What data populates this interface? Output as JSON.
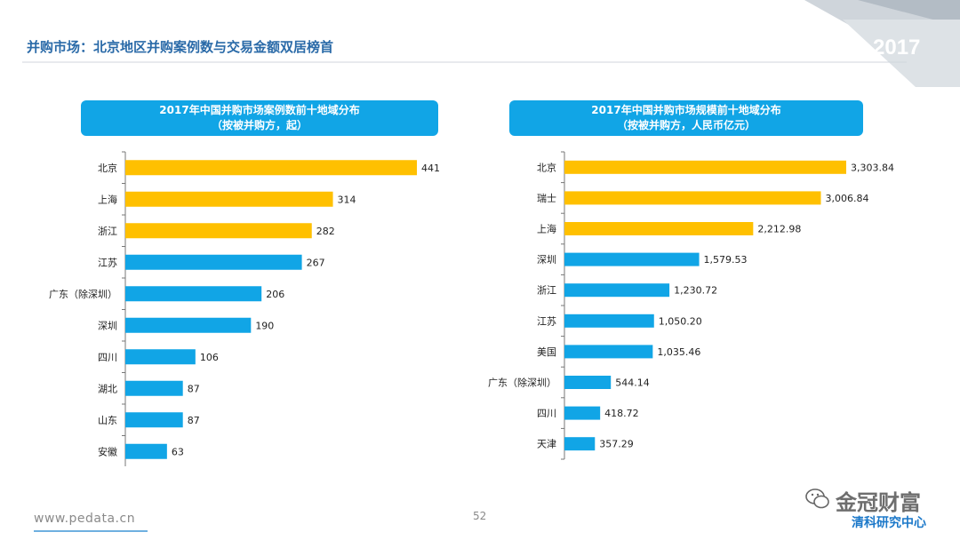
{
  "header": {
    "title": "并购市场：北京地区并购案例数与交易金额双居榜首",
    "year": "2017"
  },
  "colors": {
    "top3": "#ffc000",
    "rest": "#11a5e6",
    "title": "#2a6aa8"
  },
  "chart_data": [
    {
      "type": "bar",
      "orientation": "horizontal",
      "title": "2017年中国并购市场案例数前十地域分布",
      "subtitle": "（按被并购方，起）",
      "categories": [
        "北京",
        "上海",
        "浙江",
        "江苏",
        "广东（除深圳）",
        "深圳",
        "四川",
        "湖北",
        "山东",
        "安徽"
      ],
      "values": [
        441,
        314,
        282,
        267,
        206,
        190,
        106,
        87,
        87,
        63
      ],
      "value_labels": [
        "441",
        "314",
        "282",
        "267",
        "206",
        "190",
        "106",
        "87",
        "87",
        "63"
      ],
      "highlight_top": 3,
      "xlim": [
        0,
        441
      ],
      "grid": false
    },
    {
      "type": "bar",
      "orientation": "horizontal",
      "title": "2017年中国并购市场规模前十地域分布",
      "subtitle": "（按被并购方，人民币亿元）",
      "categories": [
        "北京",
        "瑞士",
        "上海",
        "深圳",
        "浙江",
        "江苏",
        "美国",
        "广东（除深圳）",
        "四川",
        "天津"
      ],
      "values": [
        3303.84,
        3006.84,
        2212.98,
        1579.53,
        1230.72,
        1050.2,
        1035.46,
        544.14,
        418.72,
        357.29
      ],
      "value_labels": [
        "3,303.84",
        "3,006.84",
        "2,212.98",
        "1,579.53",
        "1,230.72",
        "1,050.20",
        "1,035.46",
        "544.14",
        "418.72",
        "357.29"
      ],
      "highlight_top": 3,
      "xlim": [
        0,
        3303.84
      ],
      "grid": false
    }
  ],
  "footer": {
    "url": "www.pedata.cn",
    "page": "52",
    "watermark_name": "金冠财富",
    "watermark_sub": "清科研究中心"
  }
}
